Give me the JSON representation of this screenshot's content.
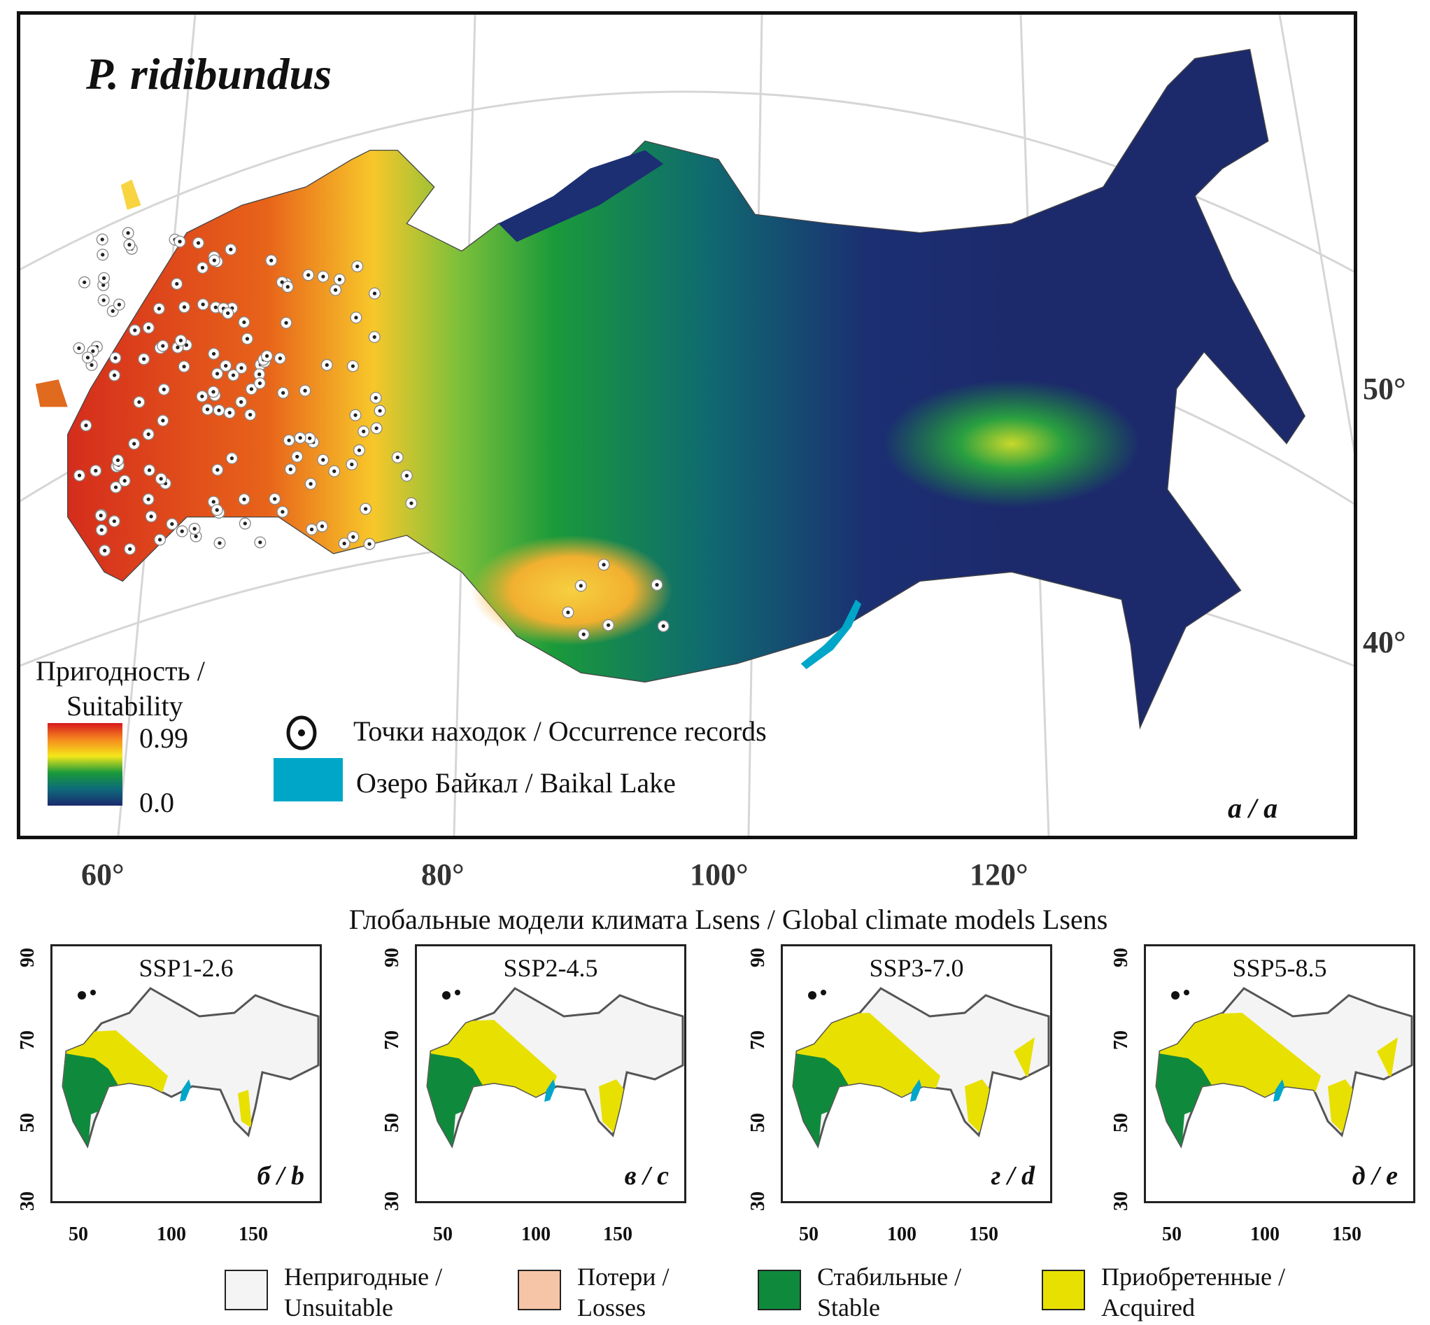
{
  "main_map": {
    "species_title": "P. ridibundus",
    "panel_letter": "а / a",
    "suitability_legend": {
      "title_line1": "Пригодность /",
      "title_line2": "Suitability",
      "max_label": "0.99",
      "min_label": "0.0",
      "colors": [
        "#d7191c",
        "#f58a1f",
        "#f5e71a",
        "#1a9a3a",
        "#0e6a7a",
        "#1b2a6e"
      ]
    },
    "symbols_legend": {
      "occurrence_label": "Точки находок / Occurrence records",
      "occurrence_icon": "dot-in-circle-icon",
      "baikal_label": "Озеро Байкал / Baikal Lake",
      "baikal_color": "#00a6c8"
    },
    "lat_labels": [
      "50°",
      "40°"
    ],
    "lon_labels": [
      "60°",
      "80°",
      "100°",
      "120°"
    ]
  },
  "subtitle": "Глобальные модели климата Lsens / Global climate models Lsens",
  "panels": [
    {
      "scenario": "SSP1-2.6",
      "letter": "б / b",
      "acquired_extent": 1
    },
    {
      "scenario": "SSP2-4.5",
      "letter": "в / c",
      "acquired_extent": 2
    },
    {
      "scenario": "SSP3-7.0",
      "letter": "г / d",
      "acquired_extent": 3
    },
    {
      "scenario": "SSP5-8.5",
      "letter": "д / e",
      "acquired_extent": 4
    }
  ],
  "panel_axes": {
    "y_ticks": [
      "90",
      "70",
      "50",
      "30"
    ],
    "x_ticks": [
      "50",
      "100",
      "150"
    ]
  },
  "change_legend": [
    {
      "line1": "Непригодные /",
      "line2": "Unsuitable",
      "color": "#f4f4f4"
    },
    {
      "line1": "Потери /",
      "line2": "Losses",
      "color": "#f6c4a6"
    },
    {
      "line1": "Стабильные /",
      "line2": "Stable",
      "color": "#0f8a3c"
    },
    {
      "line1": "Приобретенные /",
      "line2": "Acquired",
      "color": "#e8e000"
    }
  ]
}
